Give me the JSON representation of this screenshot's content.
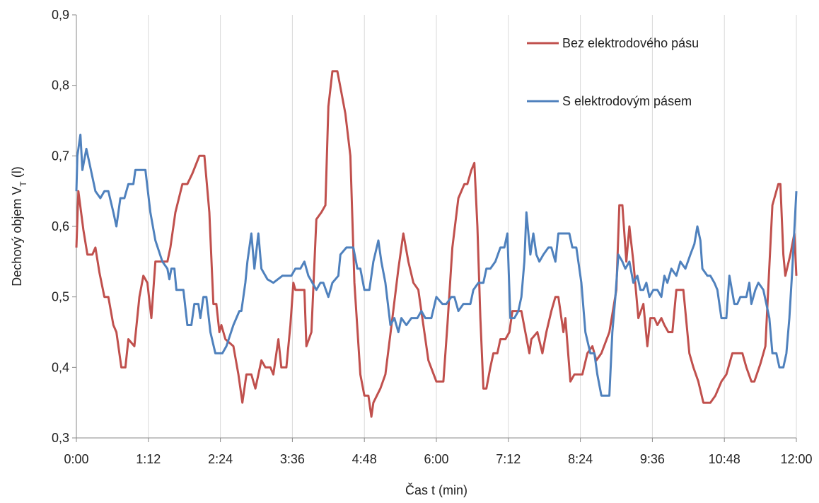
{
  "chart_data": {
    "type": "line",
    "y_label": {
      "text": "Dechový objem V",
      "subscript": "T",
      "suffix": " (l)"
    },
    "x_label": "Čas t (min)",
    "xlim": [
      0,
      720
    ],
    "xticks": [
      {
        "value": 0,
        "label": "0:00"
      },
      {
        "value": 72,
        "label": "1:12"
      },
      {
        "value": 144,
        "label": "2:24"
      },
      {
        "value": 216,
        "label": "3:36"
      },
      {
        "value": 288,
        "label": "4:48"
      },
      {
        "value": 360,
        "label": "6:00"
      },
      {
        "value": 432,
        "label": "7:12"
      },
      {
        "value": 504,
        "label": "8:24"
      },
      {
        "value": 576,
        "label": "9:36"
      },
      {
        "value": 648,
        "label": "10:48"
      },
      {
        "value": 720,
        "label": "12:00"
      }
    ],
    "ylim": [
      0.3,
      0.9
    ],
    "yticks": [
      {
        "value": 0.3,
        "label": "0,3"
      },
      {
        "value": 0.4,
        "label": "0,4"
      },
      {
        "value": 0.5,
        "label": "0,5"
      },
      {
        "value": 0.6,
        "label": "0,6"
      },
      {
        "value": 0.7,
        "label": "0,7"
      },
      {
        "value": 0.8,
        "label": "0,8"
      },
      {
        "value": 0.9,
        "label": "0,9"
      }
    ],
    "grid": "x",
    "legend": "upper right",
    "series": [
      {
        "name": "Bez elektrodového pásu",
        "color": "#c0504d",
        "x": [
          0,
          2,
          7,
          11,
          16,
          19,
          23,
          28,
          32,
          37,
          40,
          45,
          49,
          52,
          58,
          63,
          67,
          71,
          75,
          79,
          91,
          94,
          99,
          106,
          111,
          116,
          123,
          128,
          133,
          137,
          140,
          143,
          145,
          149,
          157,
          162,
          166,
          170,
          175,
          179,
          185,
          189,
          194,
          197,
          202,
          205,
          210,
          214,
          217,
          219,
          228,
          230,
          235,
          240,
          245,
          249,
          252,
          256,
          261,
          265,
          269,
          274,
          278,
          284,
          288,
          292,
          295,
          297,
          304,
          309,
          316,
          322,
          327,
          332,
          337,
          342,
          347,
          352,
          360,
          367,
          371,
          376,
          382,
          388,
          391,
          395,
          398,
          401,
          404,
          407,
          410,
          414,
          417,
          421,
          424,
          429,
          433,
          436,
          445,
          449,
          453,
          455,
          461,
          466,
          470,
          475,
          479,
          482,
          487,
          489,
          494,
          498,
          506,
          511,
          516,
          520,
          525,
          533,
          540,
          543,
          546,
          550,
          553,
          557,
          562,
          567,
          571,
          574,
          578,
          581,
          585,
          588,
          592,
          596,
          600,
          607,
          613,
          617,
          622,
          627,
          634,
          639,
          645,
          650,
          656,
          666,
          670,
          675,
          678,
          684,
          689,
          696,
          702,
          704,
          707,
          709,
          714,
          718,
          720
        ],
        "values": [
          0.57,
          0.65,
          0.595,
          0.56,
          0.56,
          0.57,
          0.535,
          0.5,
          0.5,
          0.46,
          0.45,
          0.4,
          0.4,
          0.44,
          0.43,
          0.5,
          0.53,
          0.52,
          0.47,
          0.55,
          0.55,
          0.57,
          0.62,
          0.66,
          0.66,
          0.675,
          0.7,
          0.7,
          0.62,
          0.49,
          0.49,
          0.45,
          0.46,
          0.44,
          0.43,
          0.39,
          0.35,
          0.39,
          0.39,
          0.37,
          0.41,
          0.4,
          0.4,
          0.39,
          0.44,
          0.4,
          0.4,
          0.46,
          0.52,
          0.51,
          0.51,
          0.43,
          0.45,
          0.61,
          0.62,
          0.63,
          0.77,
          0.82,
          0.82,
          0.79,
          0.76,
          0.7,
          0.52,
          0.39,
          0.36,
          0.36,
          0.33,
          0.35,
          0.37,
          0.39,
          0.47,
          0.54,
          0.59,
          0.55,
          0.52,
          0.51,
          0.46,
          0.41,
          0.38,
          0.38,
          0.46,
          0.57,
          0.64,
          0.66,
          0.66,
          0.68,
          0.69,
          0.6,
          0.47,
          0.37,
          0.37,
          0.4,
          0.42,
          0.42,
          0.44,
          0.44,
          0.45,
          0.48,
          0.48,
          0.45,
          0.42,
          0.44,
          0.45,
          0.42,
          0.45,
          0.48,
          0.5,
          0.5,
          0.45,
          0.47,
          0.38,
          0.39,
          0.39,
          0.42,
          0.43,
          0.41,
          0.42,
          0.45,
          0.51,
          0.63,
          0.63,
          0.55,
          0.6,
          0.55,
          0.47,
          0.49,
          0.43,
          0.47,
          0.47,
          0.46,
          0.47,
          0.46,
          0.45,
          0.45,
          0.51,
          0.51,
          0.42,
          0.4,
          0.38,
          0.35,
          0.35,
          0.36,
          0.38,
          0.39,
          0.42,
          0.42,
          0.4,
          0.38,
          0.38,
          0.405,
          0.43,
          0.63,
          0.66,
          0.66,
          0.56,
          0.53,
          0.56,
          0.59,
          0.53
        ]
      },
      {
        "name": "S elektrodovým pásem",
        "color": "#4f81bd",
        "x": [
          0,
          1,
          4,
          6,
          10,
          13,
          19,
          24,
          28,
          32,
          37,
          40,
          44,
          48,
          52,
          57,
          59,
          69,
          74,
          79,
          86,
          91,
          93,
          95,
          98,
          100,
          107,
          111,
          115,
          118,
          122,
          124,
          127,
          130,
          134,
          139,
          146,
          150,
          157,
          163,
          165,
          169,
          171,
          175,
          178,
          182,
          185,
          191,
          197,
          206,
          215,
          219,
          224,
          228,
          232,
          236,
          240,
          244,
          247,
          252,
          256,
          262,
          264,
          270,
          277,
          281,
          284,
          288,
          293,
          297,
          302,
          305,
          309,
          314,
          318,
          322,
          325,
          330,
          335,
          341,
          345,
          349,
          355,
          360,
          366,
          370,
          375,
          378,
          382,
          387,
          394,
          397,
          402,
          407,
          410,
          414,
          419,
          424,
          428,
          431,
          434,
          438,
          442,
          445,
          448,
          450,
          454,
          457,
          460,
          463,
          467,
          472,
          475,
          479,
          482,
          493,
          496,
          500,
          505,
          509,
          514,
          518,
          521,
          525,
          530,
          533,
          536,
          539,
          542,
          546,
          549,
          553,
          557,
          561,
          564,
          567,
          570,
          573,
          577,
          581,
          585,
          588,
          591,
          595,
          600,
          604,
          609,
          614,
          618,
          621,
          624,
          626,
          631,
          634,
          638,
          641,
          645,
          650,
          653,
          658,
          661,
          664,
          670,
          673,
          675,
          679,
          682,
          687,
          693,
          696,
          700,
          703,
          707,
          710,
          713,
          716,
          720
        ],
        "values": [
          0.65,
          0.7,
          0.73,
          0.68,
          0.71,
          0.69,
          0.65,
          0.64,
          0.65,
          0.65,
          0.62,
          0.6,
          0.64,
          0.64,
          0.66,
          0.66,
          0.68,
          0.68,
          0.62,
          0.58,
          0.55,
          0.54,
          0.525,
          0.54,
          0.54,
          0.51,
          0.51,
          0.46,
          0.46,
          0.49,
          0.49,
          0.47,
          0.5,
          0.5,
          0.45,
          0.42,
          0.42,
          0.43,
          0.46,
          0.48,
          0.48,
          0.52,
          0.55,
          0.59,
          0.54,
          0.59,
          0.54,
          0.525,
          0.52,
          0.53,
          0.53,
          0.54,
          0.54,
          0.55,
          0.53,
          0.52,
          0.51,
          0.52,
          0.52,
          0.5,
          0.52,
          0.53,
          0.56,
          0.57,
          0.57,
          0.54,
          0.54,
          0.51,
          0.51,
          0.55,
          0.58,
          0.55,
          0.52,
          0.46,
          0.47,
          0.45,
          0.47,
          0.46,
          0.47,
          0.47,
          0.48,
          0.47,
          0.47,
          0.5,
          0.49,
          0.49,
          0.5,
          0.5,
          0.48,
          0.49,
          0.49,
          0.51,
          0.52,
          0.52,
          0.54,
          0.54,
          0.55,
          0.57,
          0.57,
          0.59,
          0.47,
          0.47,
          0.48,
          0.5,
          0.55,
          0.62,
          0.56,
          0.59,
          0.56,
          0.55,
          0.56,
          0.57,
          0.57,
          0.55,
          0.59,
          0.59,
          0.57,
          0.57,
          0.52,
          0.45,
          0.42,
          0.42,
          0.39,
          0.36,
          0.36,
          0.36,
          0.45,
          0.5,
          0.56,
          0.55,
          0.54,
          0.55,
          0.52,
          0.53,
          0.51,
          0.51,
          0.52,
          0.5,
          0.51,
          0.51,
          0.5,
          0.53,
          0.52,
          0.54,
          0.53,
          0.55,
          0.54,
          0.56,
          0.575,
          0.6,
          0.58,
          0.54,
          0.53,
          0.53,
          0.52,
          0.51,
          0.47,
          0.47,
          0.53,
          0.49,
          0.49,
          0.5,
          0.5,
          0.52,
          0.49,
          0.51,
          0.52,
          0.51,
          0.47,
          0.42,
          0.42,
          0.4,
          0.4,
          0.42,
          0.47,
          0.54,
          0.65
        ]
      }
    ]
  }
}
